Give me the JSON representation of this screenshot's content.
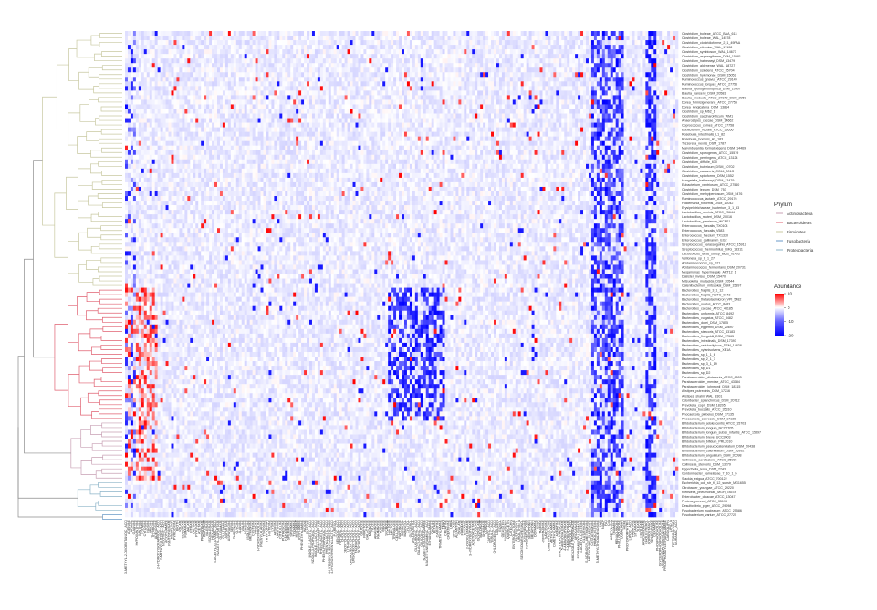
{
  "chart_data": {
    "type": "heatmap",
    "title": "",
    "row_labels": [
      "Clostridium_bolteae_ATCC_BAA_613",
      "Clostridium_bolteae_WAL_14578",
      "Clostridium_clostridioforme_2_1_49FAA",
      "Clostridium_citroniae_WAL_17108",
      "Clostridium_symbiosum_WAL_14673",
      "Clostridium_asparagiforme_DSM_15981",
      "Clostridium_hathewayi_DSM_13479",
      "Clostridium_aldenense_WAL_18727",
      "Clostridium_scindens_ATCC_35704",
      "Clostridium_hylemonae_DSM_15053",
      "Ruminococcus_gnavus_ATCC_29149",
      "Ruminococcus_torques_ATCC_27756",
      "Blautia_hydrogenotrophica_DSM_10507",
      "Blautia_hansenii_DSM_20583",
      "Blautia_producta_ATCC_27340_DSM_2950",
      "Dorea_formicigenerans_ATCC_27755",
      "Dorea_longicatena_DSM_13814",
      "Clostridium_sp_M62_1",
      "Clostridium_saccharolyticum_WM1",
      "Anaerostipes_caccae_DSM_14662",
      "Coprococcus_comes_ATCC_27758",
      "Eubacterium_rectale_ATCC_33656",
      "Roseburia_intestinalis_L1_82",
      "Roseburia_hominis_A2_183",
      "Tyzzerella_nexilis_DSM_1787",
      "Marvinbryantia_formatexigens_DSM_14469",
      "Clostridium_sporogenes_ATCC_15579",
      "Clostridium_perfringens_ATCC_13124",
      "Clostridium_difficile_630",
      "Clostridium_butyricum_DSM_10702",
      "Clostridium_cadaveris_CC44_001G",
      "Clostridium_spiroforme_DSM_1552",
      "Hungatella_hathewayi_DSM_13479",
      "Eubacterium_ventriosum_ATCC_27560",
      "Clostridium_leptum_DSM_753",
      "Clostridium_methylpentosum_DSM_5476",
      "Ruminococcus_lactaris_ATCC_29176",
      "Holdemania_filiformis_DSM_12042",
      "Erysipelotrichaceae_bacterium_3_1_53",
      "Lactobacillus_ruminis_ATCC_25644",
      "Lactobacillus_reuteri_DSM_20016",
      "Lactobacillus_plantarum_WCFS1",
      "Enterococcus_faecalis_TX0104",
      "Enterococcus_faecalis_V583",
      "Enterococcus_faecium_TX1330",
      "Enterococcus_gallinarum_EG2",
      "Streptococcus_parasanguinis_ATCC_15912",
      "Streptococcus_thermophilus_LMG_18311",
      "Lactococcus_lactis_subsp_lactis_Il1403",
      "Veillonella_sp_6_1_27",
      "Acidaminococcus_sp_D21",
      "Acidaminococcus_fermentans_DSM_20731",
      "Megamonas_hypermegale_ART12_1",
      "Dialister_invisus_DSM_15470",
      "Mitsuokella_multacida_DSM_20544",
      "Catenibacterium_mitsuokai_DSM_15897",
      "Bacteroides_fragilis_3_1_12",
      "Bacteroides_fragilis_NCTC_9343",
      "Bacteroides_thetaiotaomicron_VPI_5482",
      "Bacteroides_ovatus_ATCC_8483",
      "Bacteroides_caccae_ATCC_43185",
      "Bacteroides_uniformis_ATCC_8492",
      "Bacteroides_vulgatus_ATCC_8482",
      "Bacteroides_dorei_DSM_17855",
      "Bacteroides_eggerthii_DSM_20697",
      "Bacteroides_stercoris_ATCC_43183",
      "Bacteroides_finegoldii_DSM_17565",
      "Bacteroides_intestinalis_DSM_17393",
      "Bacteroides_cellulosilyticus_DSM_14838",
      "Bacteroides_xylanisolvens_XB1A",
      "Bacteroides_sp_1_1_6",
      "Bacteroides_sp_2_1_7",
      "Bacteroides_sp_3_1_19",
      "Bacteroides_sp_D1",
      "Bacteroides_sp_D2",
      "Parabacteroides_distasonis_ATCC_8503",
      "Parabacteroides_merdae_ATCC_43184",
      "Parabacteroides_johnsonii_DSM_18315",
      "Alistipes_putredinis_DSM_17216",
      "Alistipes_shahii_WAL_8301",
      "Odoribacter_splanchnicus_DSM_20712",
      "Prevotella_copri_DSM_18205",
      "Prevotella_buccalis_ATCC_35310",
      "Phocaeicola_plebeius_DSM_17135",
      "Phocaeicola_coprocola_DSM_17136",
      "Bifidobacterium_adolescentis_ATCC_15703",
      "Bifidobacterium_longum_NCC2705",
      "Bifidobacterium_longum_subsp_infantis_ATCC_15697",
      "Bifidobacterium_breve_UCC2003",
      "Bifidobacterium_bifidum_PRL2010",
      "Bifidobacterium_pseudocatenulatum_DSM_20438",
      "Bifidobacterium_catenulatum_DSM_16992",
      "Bifidobacterium_angulatum_DSM_20098",
      "Collinsella_aerofaciens_ATCC_25986",
      "Collinsella_stercoris_DSM_13279",
      "Eggerthella_lenta_DSM_2243",
      "Gordonibacter_pamelaeae_7_10_1_b",
      "Slackia_exigua_ATCC_700122",
      "Escherichia_coli_str_K_12_substr_MG1655",
      "Citrobacter_youngae_ATCC_29220",
      "Klebsiella_pneumoniae_MGH_78578",
      "Enterobacter_cloacae_ATCC_13047",
      "Proteus_penneri_ATCC_35198",
      "Desulfovibrio_piger_ATCC_29098",
      "Fusobacterium_nucleatum_ATCC_25586",
      "Fusobacterium_varium_ATCC_27725"
    ],
    "column_labels": [
      "3-METHYL-2-OXOBUTANOIC_ACID",
      "ADENINE",
      "URACIL",
      "GUANINE",
      "HYPOXANTHINE",
      "XANTHINE",
      "THYMINE",
      "CYTOSINE",
      "INOSINE",
      "URIDINE",
      "THYMIDINE",
      "ADENOSINE",
      "2-HYDROXYISOCAPROIC_ACID",
      "2-METHYLBUTYRIC_ACID",
      "NICOTINIC_ACID",
      "NICOTINAMIDE",
      "PANTOTHENATE",
      "RIBOFLAVIN",
      "PYRIDOXINE",
      "BIOTIN",
      "FOLATE",
      "SUCCINATE",
      "FUMARATE",
      "MALATE",
      "CITRATE",
      "LACTATE",
      "PYRUVATE",
      "ACETATE",
      "PROPIONATE",
      "BUTYRATE",
      "VALERATE",
      "ISOVALERATE",
      "HEXANOATE",
      "N-ACETYL-GLUTAMIC_ACID",
      "N-ACETYL-ASPARTATE",
      "GLUTAMATE",
      "GLUTAMINE",
      "ASPARTATE",
      "ASPARAGINE",
      "SERINE",
      "THREONINE",
      "GLYCINE",
      "ALANINE",
      "VALINE",
      "LEUCINE",
      "ISOLEUCINE",
      "METHIONINE",
      "CYSTEINE",
      "PROLINE",
      "HYDROXYPROLINE",
      "PHENYLALANINE",
      "TYROSINE",
      "TRYPTOPHAN",
      "HISTIDINE",
      "LYSINE",
      "ARGININE",
      "ORNITHINE",
      "CITRULLINE",
      "PUTRESCINE",
      "CADAVERINE",
      "SPERMIDINE",
      "SPERMINE",
      "TYRAMINE",
      "HISTAMINE",
      "TRYPTAMINE",
      "PHENETHYLAMINE",
      "INDOLE",
      "SKATOLE",
      "INDOLE-3-ACETIC_ACID",
      "INDOLE-3-PROPIONIC_ACID",
      "INDOLE-3-LACTIC_ACID",
      "INDOLE-3-ALDEHYDE",
      "PHENYLACETIC_ACID",
      "PHENYLPROPANOIC_ACID",
      "PHENYLLACTIC_ACID",
      "4-HYDROXYPHENYLACETIC_ACID",
      "4-HYDROXYPHENYLLACTIC_ACID",
      "P-CRESOL",
      "BENZOIC_ACID",
      "HIPPURIC_ACID",
      "CHOLIC_ACID",
      "DEOXYCHOLIC_ACID",
      "LITHOCHOLIC_ACID",
      "CHENODEOXYCHOLIC_ACID",
      "URSODEOXYCHOLIC_ACID",
      "TAUROCHOLIC_ACID",
      "GLYCOCHOLIC_ACID",
      "GLUCOSE",
      "FRUCTOSE",
      "GALACTOSE",
      "MANNOSE",
      "XYLOSE",
      "ARABINOSE",
      "RHAMNOSE",
      "FUCOSE",
      "RIBOSE",
      "SUCROSE",
      "LACTOSE",
      "MALTOSE",
      "TREHALOSE",
      "CELLOBIOSE",
      "RAFFINOSE",
      "SORBITOL",
      "MANNITOL",
      "XYLITOL",
      "GLYCEROL",
      "MYO-INOSITOL",
      "GLUCURONIC_ACID",
      "GALACTURONIC_ACID",
      "GLUCONIC_ACID",
      "N-ACETYLGLUCOSAMINE",
      "N-ACETYLNEURAMINIC_ACID",
      "ETHANOLAMINE",
      "CHOLINE",
      "BETAINE",
      "CARNITINE",
      "TRIMETHYLAMINE",
      "TMAO",
      "CREATINE",
      "CREATININE",
      "UREA",
      "URIC_ACID",
      "ALLANTOIN",
      "OXALATE",
      "FORMATE",
      "ETHANOL",
      "2-OXOGLUTARATE",
      "3-HYDROXYBUTYRATE",
      "ACETOACETATE",
      "GLYCOLATE",
      "GLYOXYLATE",
      "MALONATE",
      "SHIKIMATE",
      "QUINATE",
      "CAFFEIC_ACID",
      "FERULIC_ACID",
      "CHLOROGENIC_ACID",
      "DAIDZEIN",
      "EQUOL",
      "GENISTEIN",
      "NARINGENIN",
      "QUERCETIN",
      "CATECHIN",
      "ENTEROLACTONE",
      "ENTERODIOL",
      "UROLITHIN_A",
      "SECOISOLARICIRESINOL",
      "KYNURENINE",
      "KYNURENIC_ACID",
      "SEROTONIN",
      "MELATONIN",
      "DOPAMINE",
      "GABA",
      "TAURINE",
      "HYPOTAURINE",
      "SARCOSINE",
      "DIMETHYLGLYCINE",
      "METHYLAMINE",
      "DIMETHYLAMINE",
      "AGMATINE",
      "N-ACETYLPUTRESCINE",
      "5-AMINOVALERATE",
      "4-AMINOBUTYRATE",
      "2-AMINOBUTYRATE",
      "PIPECOLIC_ACID",
      "IMIDAZOLE_PROPIONATE",
      "UROCANATE",
      "FORMIMINOGLUTAMATE",
      "N-ACETYL-CYSTEINE",
      "GLUTATHIONE",
      "S-ADENOSYL-METHIONINE",
      "METHIONINE_SULFOXIDE",
      "CYSTATHIONINE",
      "HOMOCYSTEINE",
      "5-METHYLTHIOADENOSINE",
      "NAD",
      "NADP",
      "FAD",
      "CoA",
      "ACETYL-CoA",
      "THIAMINE",
      "MENAQUINONE",
      "PHYLLOQUINONE",
      "COBALAMIN",
      "HEME",
      "PROTOPORPHYRIN",
      "LIPOIC_ACID",
      "PALMITATE",
      "STEARATE",
      "OLEATE",
      "LINOLEATE",
      "ARACHIDONATE",
      "CHOLESTEROL",
      "COPROSTANOL",
      "SPHINGOSINE",
      "CERAMIDE",
      "PHOSPHOCHOLINE",
      "GLYCEROPHOSPHOCHOLINE",
      "LYSOPHOSPHATIDYLCHOLINE",
      "PHOSPHATIDYLETHANOLAMINE",
      "CARDIOLIPIN",
      "LIPID_A",
      "PEPTIDOGLYCAN",
      "MURAMIC_ACID"
    ],
    "value_range": [
      -20,
      10
    ],
    "colors": {
      "high": "#ff0000",
      "mid": "#ffffff",
      "low": "#0000ff",
      "dendrogram": "#8c8c8c"
    },
    "phylum_colors": {
      "Actinobacteria": "#c8a0b4",
      "Bacteroidetes": "#e06070",
      "Firmicutes": "#c8c8a0",
      "Fusobacteria": "#6a9ac8",
      "Proteobacteria": "#8cb4c8"
    },
    "phylum_groups": [
      {
        "phylum": "Firmicutes",
        "start": 0,
        "end": 55
      },
      {
        "phylum": "Bacteroidetes",
        "start": 56,
        "end": 84
      },
      {
        "phylum": "Actinobacteria",
        "start": 85,
        "end": 97
      },
      {
        "phylum": "Proteobacteria",
        "start": 98,
        "end": 104
      },
      {
        "phylum": "Fusobacteria",
        "start": 105,
        "end": 106
      }
    ],
    "legend": {
      "phylum_title": "Phylum",
      "phylum_entries": [
        "Actinobacteria",
        "Bacteroidetes",
        "Firmicutes",
        "Fusobacteria",
        "Proteobacteria"
      ],
      "abundance_title": "Abundance",
      "abundance_ticks": [
        10,
        0,
        -10,
        -20
      ],
      "placement": "right"
    },
    "value_model": {
      "seed": 17,
      "note_free": true
    }
  }
}
